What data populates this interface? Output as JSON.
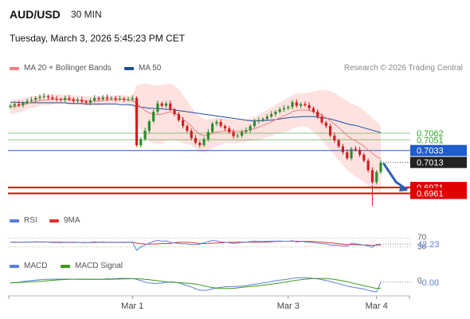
{
  "header": {
    "symbol": "AUD/USD",
    "timeframe": "30 MIN",
    "datetime": "Tuesday, March 3, 2026 5:45:23 PM CET"
  },
  "legend": {
    "ma20_bb": "MA 20 + Bollinger Bands",
    "ma50": "MA 50",
    "credit": "Research © 2026 Trading Central",
    "rsi": "RSI",
    "rsi_ma": "9MA",
    "macd": "MACD",
    "macd_signal": "MACD Signal"
  },
  "colors": {
    "ma20_bb": "#f08080",
    "ma50": "#1f4e9c",
    "band_fill": "#fde0de",
    "candle_up": "#2e8b2e",
    "candle_down": "#d11f1f",
    "resistance": "#2aa02a",
    "pivot": "#1f5ccc",
    "support": "#e00000",
    "price": "#222222",
    "rsi": "#5b7fdc",
    "rsi_ma": "#e03030",
    "macd": "#5b7fdc",
    "macd_signal": "#3a9b1a"
  },
  "chart_data": {
    "type": "candlestick",
    "symbol": "AUD/USD",
    "interval": "30 MIN",
    "x_tick_labels": [
      "Mar 1",
      "Mar 3",
      "Mar 4"
    ],
    "price_levels": [
      {
        "label": "0.7062",
        "value": 0.7062,
        "role": "resistance-2"
      },
      {
        "label": "0.7051",
        "value": 0.7051,
        "role": "resistance-1"
      },
      {
        "label": "0.7033",
        "value": 0.7033,
        "role": "pivot"
      },
      {
        "label": "0.7013",
        "value": 0.7013,
        "role": "last-price"
      },
      {
        "label": "0.6971",
        "value": 0.6971,
        "role": "support-1"
      },
      {
        "label": "0.6961",
        "value": 0.6961,
        "role": "support-2"
      }
    ],
    "forecast": {
      "from": 0.7013,
      "to": 0.6971,
      "direction": "down"
    },
    "close_series": [
      0.7108,
      0.7111,
      0.7109,
      0.7113,
      0.7116,
      0.7118,
      0.7121,
      0.7123,
      0.7124,
      0.7122,
      0.712,
      0.7119,
      0.7118,
      0.7121,
      0.7119,
      0.7116,
      0.7118,
      0.7115,
      0.7113,
      0.7117,
      0.7121,
      0.7119,
      0.7122,
      0.712,
      0.7121,
      0.7119,
      0.712,
      0.7118,
      0.7119,
      0.7121,
      0.7042,
      0.7052,
      0.7066,
      0.7082,
      0.7098,
      0.7112,
      0.7108,
      0.7112,
      0.7102,
      0.7094,
      0.7084,
      0.7074,
      0.7066,
      0.7054,
      0.7046,
      0.7042,
      0.7052,
      0.7064,
      0.7078,
      0.7081,
      0.7074,
      0.707,
      0.7064,
      0.7057,
      0.7058,
      0.7064,
      0.7067,
      0.7074,
      0.7082,
      0.7084,
      0.7086,
      0.709,
      0.7094,
      0.7098,
      0.7102,
      0.7104,
      0.7106,
      0.7114,
      0.7108,
      0.7111,
      0.7109,
      0.7104,
      0.7098,
      0.709,
      0.708,
      0.7074,
      0.7058,
      0.705,
      0.704,
      0.703,
      0.702,
      0.7036,
      0.7034,
      0.7026,
      0.7016,
      0.7,
      0.698,
      0.6997,
      0.7013
    ],
    "ma20_series": [
      0.7106,
      0.7107,
      0.7108,
      0.711,
      0.7112,
      0.7114,
      0.7115,
      0.7117,
      0.7118,
      0.7118,
      0.7119,
      0.7119,
      0.7119,
      0.7119,
      0.7118,
      0.7118,
      0.7117,
      0.7117,
      0.7116,
      0.7116,
      0.7116,
      0.7116,
      0.7117,
      0.7118,
      0.7118,
      0.7118,
      0.7119,
      0.7119,
      0.7118,
      0.7117,
      0.7112,
      0.7106,
      0.71,
      0.7096,
      0.7094,
      0.7093,
      0.7094,
      0.7096,
      0.7098,
      0.7096,
      0.7092,
      0.7086,
      0.708,
      0.7074,
      0.7066,
      0.706,
      0.7058,
      0.7059,
      0.7062,
      0.7064,
      0.7065,
      0.7066,
      0.7066,
      0.7065,
      0.7065,
      0.7065,
      0.7066,
      0.7068,
      0.707,
      0.7072,
      0.7075,
      0.7078,
      0.7081,
      0.7085,
      0.7088,
      0.7091,
      0.7094,
      0.7098,
      0.71,
      0.7101,
      0.7101,
      0.71,
      0.7098,
      0.7096,
      0.7092,
      0.7088,
      0.7083,
      0.7077,
      0.7071,
      0.7065,
      0.7058,
      0.7053,
      0.7049,
      0.7045,
      0.704,
      0.7034,
      0.7028,
      0.7023,
      0.7019
    ],
    "ma50_series": [
      0.7114,
      0.7114,
      0.7114,
      0.7113,
      0.7113,
      0.7113,
      0.7113,
      0.7113,
      0.7113,
      0.7113,
      0.7113,
      0.7113,
      0.7113,
      0.7113,
      0.7112,
      0.7112,
      0.7112,
      0.7112,
      0.7111,
      0.7111,
      0.7111,
      0.7111,
      0.7111,
      0.7111,
      0.7111,
      0.7111,
      0.711,
      0.711,
      0.711,
      0.7109,
      0.7107,
      0.7106,
      0.7105,
      0.7104,
      0.7104,
      0.7103,
      0.7103,
      0.7102,
      0.7102,
      0.7101,
      0.71,
      0.7099,
      0.7098,
      0.7097,
      0.7096,
      0.7095,
      0.7094,
      0.7093,
      0.7092,
      0.7091,
      0.709,
      0.7089,
      0.7088,
      0.7087,
      0.7086,
      0.7085,
      0.7084,
      0.7083,
      0.7083,
      0.7083,
      0.7083,
      0.7084,
      0.7084,
      0.7085,
      0.7086,
      0.7087,
      0.7088,
      0.7089,
      0.7089,
      0.709,
      0.709,
      0.709,
      0.709,
      0.7089,
      0.7088,
      0.7087,
      0.7086,
      0.7084,
      0.7082,
      0.708,
      0.7078,
      0.7076,
      0.7075,
      0.7073,
      0.7071,
      0.7069,
      0.7067,
      0.7065,
      0.7063
    ],
    "bb_width_series": [
      0.0012,
      0.0012,
      0.0011,
      0.0011,
      0.001,
      0.001,
      0.001,
      0.0009,
      0.0009,
      0.0009,
      0.0009,
      0.0008,
      0.0008,
      0.0008,
      0.0008,
      0.0008,
      0.0008,
      0.0008,
      0.0008,
      0.0008,
      0.0008,
      0.0008,
      0.0008,
      0.0007,
      0.0007,
      0.0007,
      0.0007,
      0.0007,
      0.0007,
      0.0008,
      0.003,
      0.0038,
      0.0045,
      0.0048,
      0.0049,
      0.0049,
      0.0049,
      0.0048,
      0.0047,
      0.0046,
      0.0044,
      0.004,
      0.0036,
      0.0032,
      0.003,
      0.003,
      0.0028,
      0.0026,
      0.0025,
      0.0024,
      0.0022,
      0.0021,
      0.002,
      0.002,
      0.0019,
      0.0019,
      0.0019,
      0.0019,
      0.002,
      0.0021,
      0.0022,
      0.0023,
      0.0024,
      0.0025,
      0.0026,
      0.0027,
      0.0028,
      0.0028,
      0.0028,
      0.0028,
      0.0028,
      0.003,
      0.0034,
      0.0038,
      0.0042,
      0.0046,
      0.005,
      0.0052,
      0.0054,
      0.0056,
      0.0058,
      0.0059,
      0.006,
      0.006,
      0.006,
      0.006,
      0.0059,
      0.0058,
      0.0057
    ],
    "price_ylim": [
      0.6935,
      0.7145
    ],
    "rsi": {
      "levels": [
        "70",
        "30"
      ],
      "current_label": "42.23",
      "current": 42.23,
      "ylim": [
        0,
        100
      ]
    },
    "macd": {
      "zero_label": "0",
      "current_label": "-0.00",
      "current": -0.0004
    },
    "grid": false
  }
}
